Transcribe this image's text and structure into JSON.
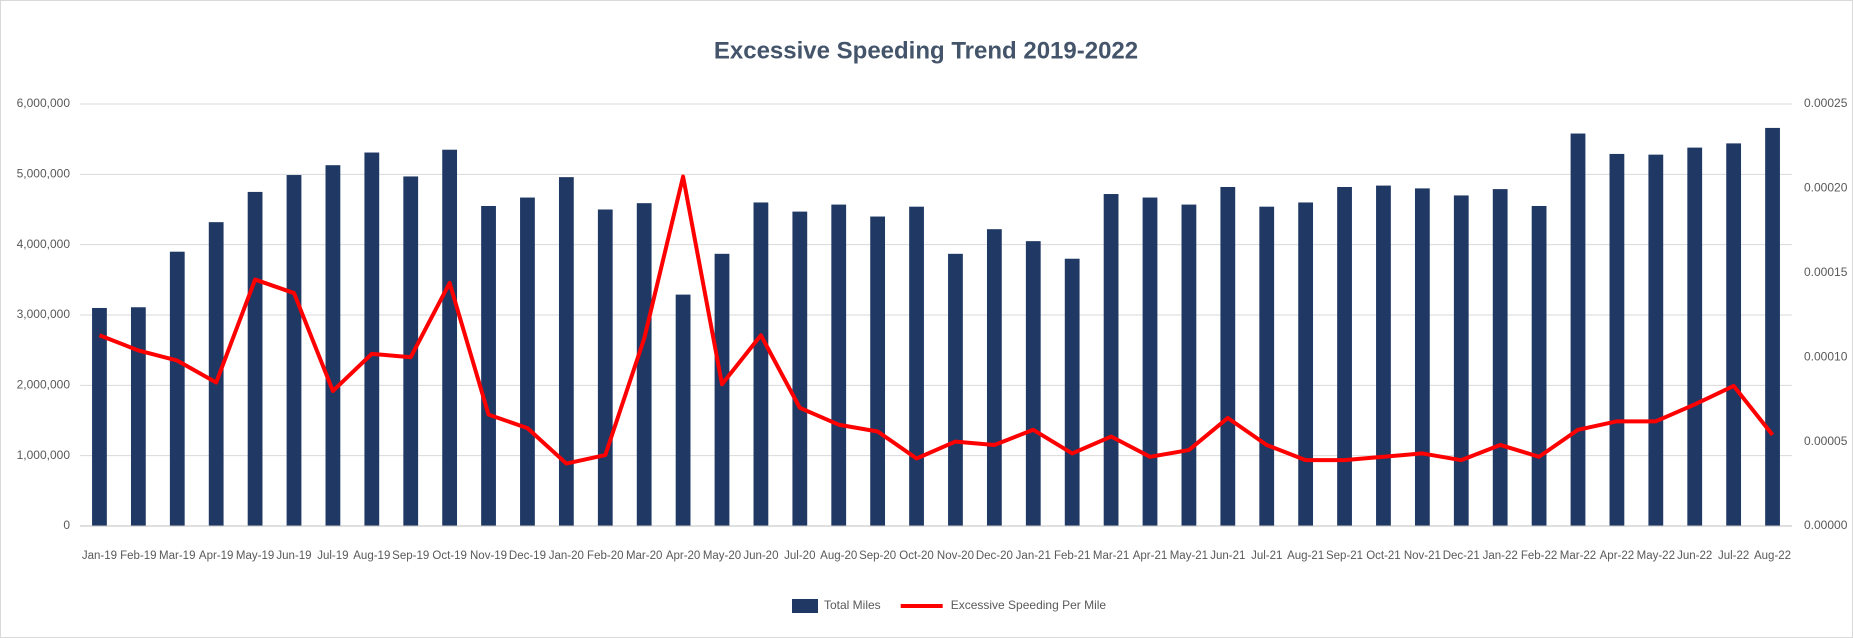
{
  "chart_data": {
    "type": "bar_line",
    "title": "Excessive Speeding Trend 2019-2022",
    "categories": [
      "Jan-19",
      "Feb-19",
      "Mar-19",
      "Apr-19",
      "May-19",
      "Jun-19",
      "Jul-19",
      "Aug-19",
      "Sep-19",
      "Oct-19",
      "Nov-19",
      "Dec-19",
      "Jan-20",
      "Feb-20",
      "Mar-20",
      "Apr-20",
      "May-20",
      "Jun-20",
      "Jul-20",
      "Aug-20",
      "Sep-20",
      "Oct-20",
      "Nov-20",
      "Dec-20",
      "Jan-21",
      "Feb-21",
      "Mar-21",
      "Apr-21",
      "May-21",
      "Jun-21",
      "Jul-21",
      "Aug-21",
      "Sep-21",
      "Oct-21",
      "Nov-21",
      "Dec-21",
      "Jan-22",
      "Feb-22",
      "Mar-22",
      "Apr-22",
      "May-22",
      "Jun-22",
      "Jul-22",
      "Aug-22"
    ],
    "series": [
      {
        "name": "Total Miles",
        "type": "bar",
        "color": "#1f3864",
        "values": [
          3100000,
          3110000,
          3900000,
          4320000,
          4750000,
          4990000,
          5130000,
          5310000,
          4970000,
          5350000,
          4550000,
          4670000,
          4960000,
          4500000,
          4590000,
          3290000,
          3870000,
          4600000,
          4470000,
          4570000,
          4400000,
          4540000,
          3870000,
          4220000,
          4050000,
          3800000,
          4720000,
          4670000,
          4570000,
          4820000,
          4540000,
          4600000,
          4820000,
          4840000,
          4800000,
          4700000,
          4790000,
          4550000,
          5580000,
          5290000,
          5280000,
          5380000,
          5440000,
          5660000
        ]
      },
      {
        "name": "Excessive Speeding Per Mile",
        "type": "line",
        "axis": "y2",
        "color": "#ff0000",
        "values": [
          0.000113,
          0.000104,
          9.8e-05,
          8.5e-05,
          0.000146,
          0.000138,
          8e-05,
          0.000102,
          0.0001,
          0.000144,
          6.6e-05,
          5.8e-05,
          3.7e-05,
          4.2e-05,
          0.000111,
          0.000207,
          8.4e-05,
          0.000113,
          7e-05,
          6e-05,
          5.6e-05,
          4e-05,
          5e-05,
          4.8e-05,
          5.7e-05,
          4.3e-05,
          5.3e-05,
          4.1e-05,
          4.5e-05,
          6.4e-05,
          4.8e-05,
          3.9e-05,
          3.9e-05,
          4.1e-05,
          4.3e-05,
          3.9e-05,
          4.8e-05,
          4.1e-05,
          5.7e-05,
          6.2e-05,
          6.2e-05,
          7.2e-05,
          8.3e-05,
          5.4e-05
        ]
      }
    ],
    "ylim": [
      0,
      6000000
    ],
    "yticks": [
      0,
      {
        "value": 1000000,
        "label": "1,000,000"
      },
      {
        "value": 2000000,
        "label": "2,000,000"
      },
      {
        "value": 3000000,
        "label": "3,000,000"
      },
      {
        "value": 4000000,
        "label": "4,000,000"
      },
      {
        "value": 5000000,
        "label": "5,000,000"
      },
      {
        "value": 6000000,
        "label": "6,000,000"
      }
    ],
    "y2lim": [
      0,
      0.00025
    ],
    "y2ticks": [
      {
        "value": 0,
        "label": "0.00000"
      },
      5e-05,
      {
        "value": 0.0001,
        "label": "0.00010"
      },
      0.00015,
      {
        "value": 0.0002,
        "label": "0.00020"
      },
      0.00025
    ],
    "grid": true,
    "legend": "bottom"
  }
}
